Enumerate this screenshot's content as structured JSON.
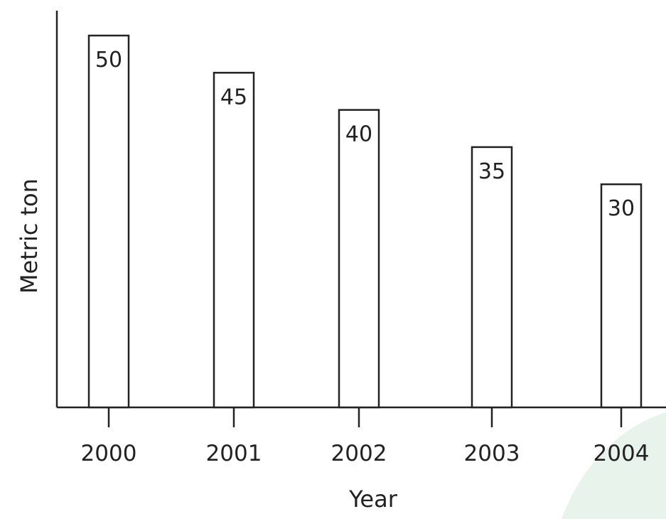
{
  "chart_data": {
    "type": "bar",
    "title": "",
    "xlabel": "Year",
    "ylabel": "Metric ton",
    "categories": [
      "2000",
      "2001",
      "2002",
      "2003",
      "2004"
    ],
    "values": [
      50,
      45,
      40,
      35,
      30
    ],
    "data_labels": [
      "50",
      "45",
      "40",
      "35",
      "30"
    ],
    "ylim": [
      0,
      50
    ],
    "grid": false,
    "legend": "none",
    "colors": {
      "bar_fill": "#ffffff",
      "bar_stroke": "#222222",
      "text": "#222222",
      "corner_decoration": "#e8f3ec"
    }
  }
}
